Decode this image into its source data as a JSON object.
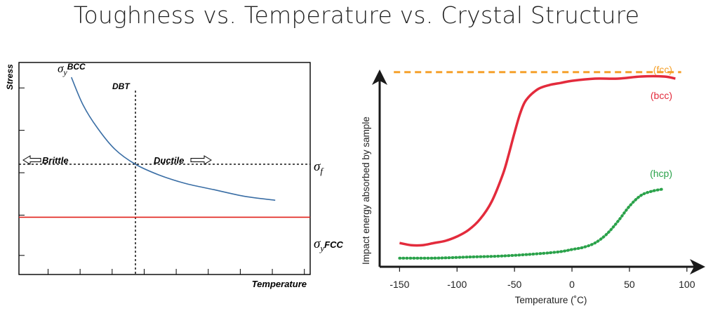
{
  "page": {
    "title": "Toughness vs. Temperature vs. Crystal Structure"
  },
  "chart_data": [
    {
      "type": "line",
      "title": "",
      "xlabel": "Temperature",
      "ylabel": "Stress",
      "grid": false,
      "annotations": {
        "dbt": "DBT",
        "brittle": "Brittle",
        "ductile": "Ductile",
        "sigma": "σ",
        "sub_y": "y",
        "sub_f": "f",
        "bcc": "BCC",
        "fcc": "FCC"
      },
      "series": [
        {
          "name": "σy BCC",
          "color": "#3a6ea5",
          "x": [
            0.18,
            0.22,
            0.27,
            0.33,
            0.4,
            0.48,
            0.57,
            0.67,
            0.77,
            0.88
          ],
          "y": [
            0.93,
            0.8,
            0.69,
            0.59,
            0.52,
            0.47,
            0.43,
            0.4,
            0.37,
            0.35
          ]
        },
        {
          "name": "σy FCC",
          "color": "#e0201a",
          "x": [
            0.0,
            1.0
          ],
          "y": [
            0.27,
            0.27
          ]
        }
      ],
      "reference_lines": {
        "sigma_f": 0.52,
        "dbt_x": 0.4
      }
    },
    {
      "type": "line",
      "title": "",
      "xlabel": "Temperature (˚C)",
      "ylabel": "Impact energy absorbed by sample",
      "xlim": [
        -160,
        105
      ],
      "xticks": [
        -150,
        -100,
        -50,
        0,
        50,
        100
      ],
      "ylim": [
        0,
        100
      ],
      "grid": false,
      "series": [
        {
          "name": "(fcc)",
          "color": "#f5a12b",
          "style": "dashed",
          "x": [
            -155,
            95
          ],
          "y": [
            90,
            90
          ]
        },
        {
          "name": "(bcc)",
          "color": "#e32b3c",
          "style": "solid",
          "x": [
            -150,
            -140,
            -130,
            -120,
            -110,
            -100,
            -90,
            -80,
            -70,
            -60,
            -55,
            -50,
            -45,
            -40,
            -30,
            -20,
            -10,
            0,
            20,
            40,
            60,
            80,
            90
          ],
          "y": [
            11,
            10,
            10,
            11,
            12,
            14,
            17,
            22,
            30,
            43,
            52,
            62,
            71,
            77,
            82,
            84,
            85,
            86,
            87,
            87,
            88,
            88,
            87
          ]
        },
        {
          "name": "(hcp)",
          "color": "#2aa24a",
          "style": "dotted",
          "x": [
            -150,
            -120,
            -90,
            -60,
            -30,
            -10,
            0,
            10,
            20,
            30,
            40,
            50,
            60,
            70,
            80
          ],
          "y": [
            4,
            4,
            4.5,
            5,
            6,
            7,
            8,
            9,
            11,
            15,
            21,
            28,
            33,
            35,
            36
          ]
        }
      ]
    }
  ]
}
